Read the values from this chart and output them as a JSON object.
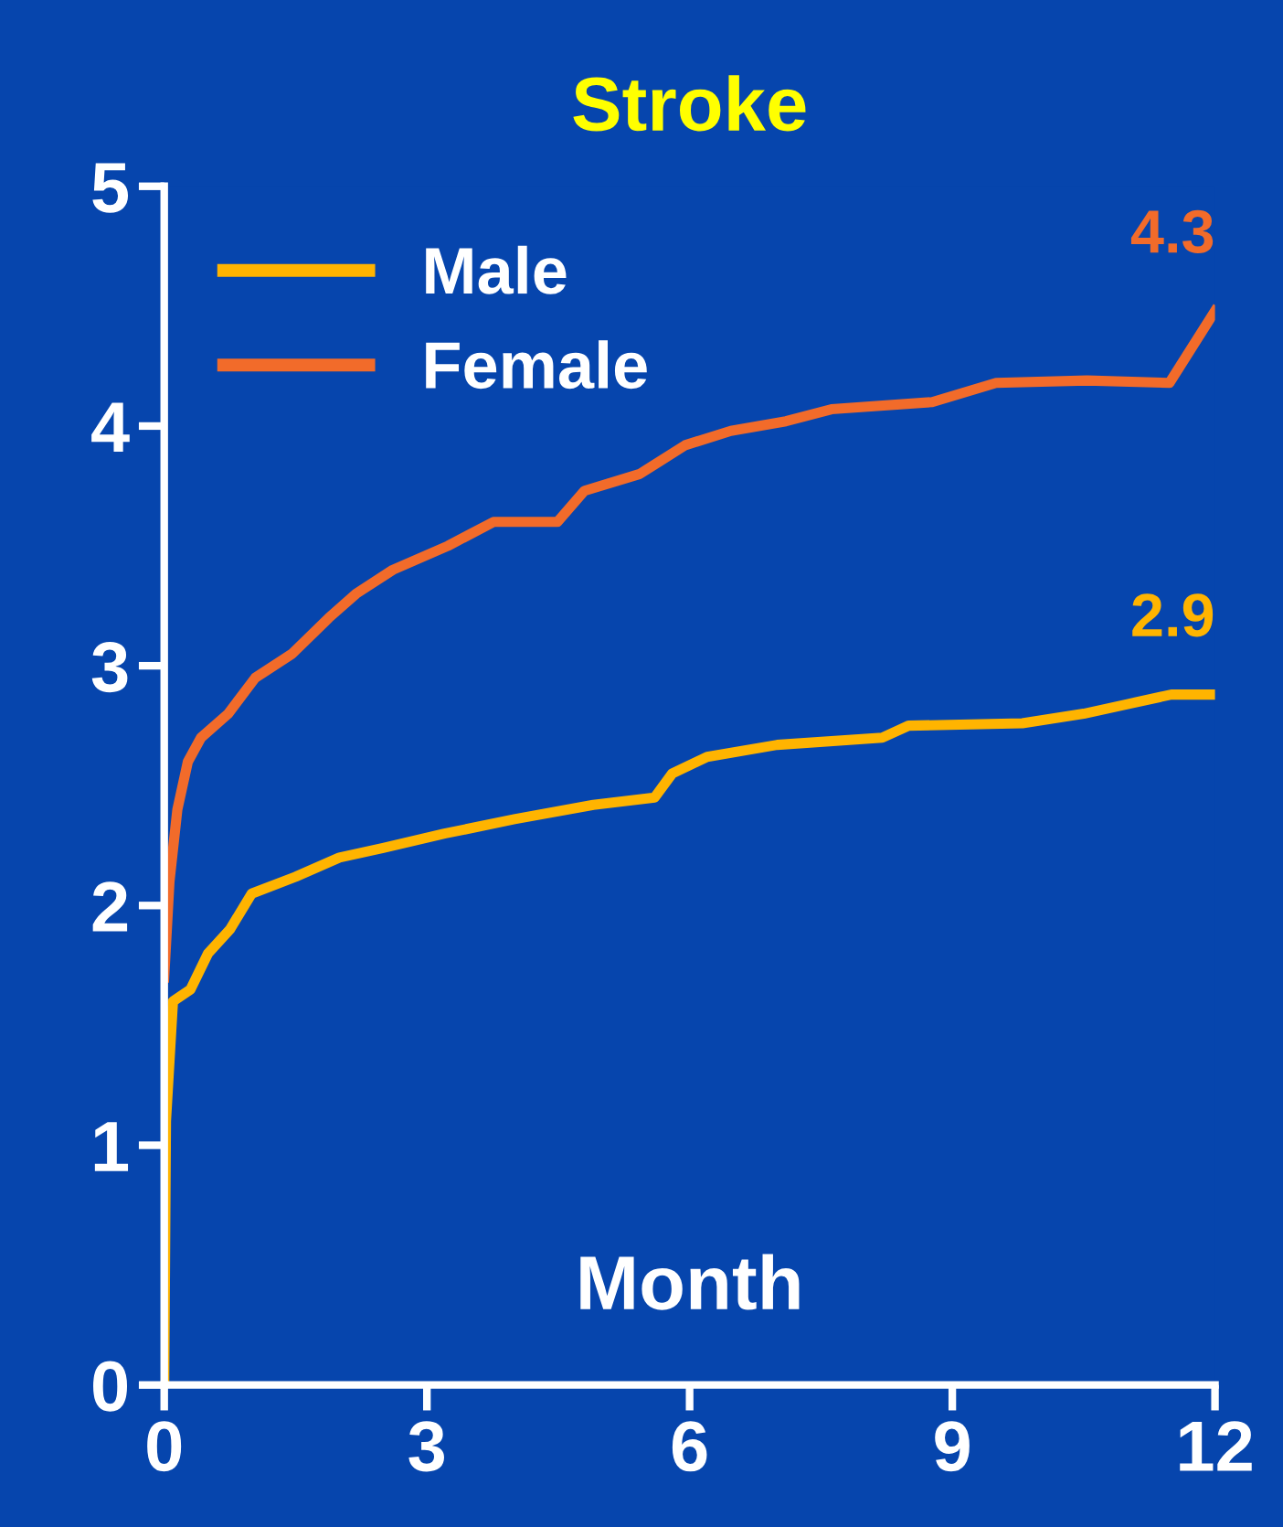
{
  "chart_data": {
    "type": "line",
    "title": "Stroke",
    "xlabel": "Month",
    "annotations": [
      "2.9",
      "4.3"
    ],
    "xlim": [
      0,
      12
    ],
    "xticks": [
      0,
      3,
      6,
      9,
      12
    ],
    "ylim": [
      0,
      5
    ],
    "yticks": [
      0,
      1,
      2,
      3,
      4,
      5
    ],
    "grid": false,
    "legend": "top left",
    "marker": "none",
    "line_style": "solid",
    "series": [
      {
        "name": "Male",
        "color": "#ffb400",
        "x": [
          0,
          0.02,
          0.1,
          0.3,
          0.5,
          0.75,
          1.0,
          1.5,
          2.0,
          2.5,
          3.2,
          4.0,
          4.9,
          5.6,
          5.8,
          6.2,
          7.0,
          8.2,
          8.5,
          9.8,
          10.5,
          11.0,
          11.5,
          12.0
        ],
        "values": [
          0,
          1.1,
          1.6,
          1.65,
          1.8,
          1.9,
          2.05,
          2.12,
          2.2,
          2.24,
          2.3,
          2.36,
          2.42,
          2.45,
          2.55,
          2.62,
          2.67,
          2.7,
          2.75,
          2.76,
          2.8,
          2.84,
          2.88,
          2.88
        ]
      },
      {
        "name": "Female",
        "color": "#f26b2a",
        "x": [
          0,
          0.06,
          0.15,
          0.27,
          0.42,
          0.73,
          1.04,
          1.46,
          1.88,
          2.19,
          2.61,
          3.24,
          3.76,
          4.49,
          4.8,
          5.43,
          5.95,
          6.47,
          7.1,
          7.62,
          8.77,
          9.5,
          10.54,
          11.48,
          12.0
        ],
        "values": [
          1.7,
          2.1,
          2.4,
          2.6,
          2.7,
          2.8,
          2.95,
          3.05,
          3.2,
          3.3,
          3.4,
          3.5,
          3.6,
          3.6,
          3.73,
          3.8,
          3.92,
          3.98,
          4.02,
          4.07,
          4.1,
          4.18,
          4.19,
          4.18,
          4.48
        ]
      }
    ]
  }
}
